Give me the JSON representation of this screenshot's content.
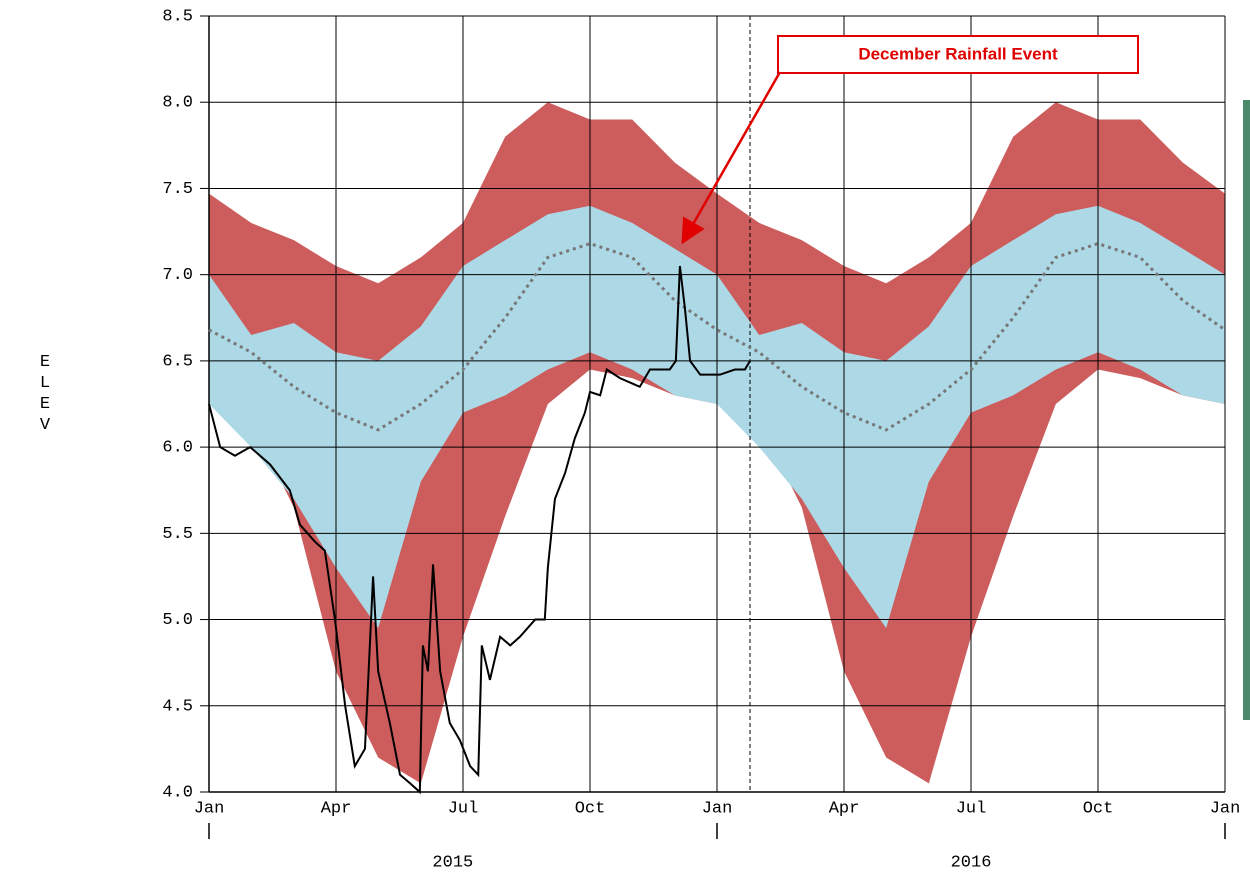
{
  "chart_data": {
    "type": "line",
    "y_label": "ELEV",
    "annotation": "December Rainfall Event",
    "xlim": [
      2015,
      2017
    ],
    "xticks": [
      {
        "value": 2015,
        "label": "Jan"
      },
      {
        "value": 2015.25,
        "label": "Apr"
      },
      {
        "value": 2015.5,
        "label": "Jul"
      },
      {
        "value": 2015.75,
        "label": "Oct"
      },
      {
        "value": 2016,
        "label": "Jan"
      },
      {
        "value": 2016.25,
        "label": "Apr"
      },
      {
        "value": 2016.5,
        "label": "Jul"
      },
      {
        "value": 2016.75,
        "label": "Oct"
      },
      {
        "value": 2017,
        "label": "Jan"
      }
    ],
    "year_labels": [
      {
        "value": 2015.48,
        "label": "2015"
      },
      {
        "value": 2016.5,
        "label": "2016"
      }
    ],
    "year_ticks": [
      2015,
      2016,
      2017
    ],
    "ylim": [
      4,
      8.5
    ],
    "yticks": [
      {
        "value": 4,
        "label": "4.0"
      },
      4.5,
      {
        "value": 5,
        "label": "5.0"
      },
      5.5,
      {
        "value": 6,
        "label": "6.0"
      },
      6.5,
      {
        "value": 7,
        "label": "7.0"
      },
      7.5,
      {
        "value": 8,
        "label": "8.0"
      },
      8.5
    ],
    "grid": true,
    "marker_x": 2016.065,
    "band_x": [
      2015,
      2015.083,
      2015.167,
      2015.25,
      2015.333,
      2015.417,
      2015.5,
      2015.583,
      2015.667,
      2015.75,
      2015.833,
      2015.917,
      2016,
      2016.083,
      2016.167,
      2016.25,
      2016.333,
      2016.417,
      2016.5,
      2016.583,
      2016.667,
      2016.75,
      2016.833,
      2016.917,
      2017
    ],
    "bands": [
      {
        "color": "#cd5c5c",
        "upper": [
          7.47,
          7.3,
          7.2,
          7.05,
          6.95,
          7.1,
          7.3,
          7.8,
          8.0,
          7.9,
          7.9,
          7.65,
          7.47,
          7.3,
          7.2,
          7.05,
          6.95,
          7.1,
          7.3,
          7.8,
          8.0,
          7.9,
          7.9,
          7.65,
          7.47
        ],
        "lower": [
          6.25,
          6.15,
          5.65,
          4.7,
          4.2,
          4.05,
          4.9,
          5.6,
          6.25,
          6.45,
          6.4,
          6.3,
          6.25,
          6.15,
          5.65,
          4.7,
          4.2,
          4.05,
          4.9,
          5.6,
          6.25,
          6.45,
          6.4,
          6.3,
          6.25
        ]
      },
      {
        "color": "#add8e6",
        "upper": [
          7.0,
          6.65,
          6.72,
          6.55,
          6.5,
          6.7,
          7.05,
          7.2,
          7.35,
          7.4,
          7.3,
          7.15,
          7.0,
          6.65,
          6.72,
          6.55,
          6.5,
          6.7,
          7.05,
          7.2,
          7.35,
          7.4,
          7.3,
          7.15,
          7.0
        ],
        "lower": [
          6.25,
          6.0,
          5.7,
          5.3,
          4.95,
          5.8,
          6.2,
          6.3,
          6.45,
          6.55,
          6.45,
          6.3,
          6.25,
          6.0,
          5.7,
          5.3,
          4.95,
          5.8,
          6.2,
          6.3,
          6.45,
          6.55,
          6.45,
          6.3,
          6.25
        ]
      }
    ],
    "median": {
      "color": "#777777",
      "values": [
        6.68,
        6.55,
        6.35,
        6.2,
        6.1,
        6.25,
        6.45,
        6.75,
        7.1,
        7.18,
        7.1,
        6.85,
        6.68,
        6.55,
        6.35,
        6.2,
        6.1,
        6.25,
        6.45,
        6.75,
        7.1,
        7.18,
        7.1,
        6.85,
        6.68
      ]
    },
    "observed": {
      "color": "#000000",
      "x": [
        2015,
        2015.022,
        2015.051,
        2015.081,
        2015.12,
        2015.159,
        2015.179,
        2015.209,
        2015.228,
        2015.248,
        2015.268,
        2015.287,
        2015.307,
        2015.323,
        2015.333,
        2015.356,
        2015.376,
        2015.396,
        2015.415,
        2015.421,
        2015.431,
        2015.441,
        2015.455,
        2015.474,
        2015.494,
        2015.514,
        2015.53,
        2015.537,
        2015.553,
        2015.573,
        2015.593,
        2015.612,
        2015.642,
        2015.661,
        2015.667,
        2015.681,
        2015.701,
        2015.72,
        2015.74,
        2015.75,
        2015.77,
        2015.783,
        2015.809,
        2015.848,
        2015.868,
        2015.907,
        2015.919,
        2015.927,
        2015.937,
        2015.947,
        2015.967,
        2016.006,
        2016.035,
        2016.055,
        2016.065
      ],
      "values": [
        6.25,
        6.0,
        5.95,
        6.0,
        5.9,
        5.75,
        5.55,
        5.45,
        5.4,
        5.0,
        4.5,
        4.15,
        4.25,
        5.25,
        4.7,
        4.4,
        4.1,
        4.05,
        4.0,
        4.85,
        4.7,
        5.32,
        4.7,
        4.4,
        4.3,
        4.15,
        4.1,
        4.85,
        4.65,
        4.9,
        4.85,
        4.9,
        5.0,
        5.0,
        5.3,
        5.7,
        5.85,
        6.05,
        6.2,
        6.32,
        6.3,
        6.45,
        6.4,
        6.35,
        6.45,
        6.45,
        6.5,
        7.05,
        6.8,
        6.5,
        6.42,
        6.42,
        6.45,
        6.45,
        6.5
      ]
    }
  }
}
